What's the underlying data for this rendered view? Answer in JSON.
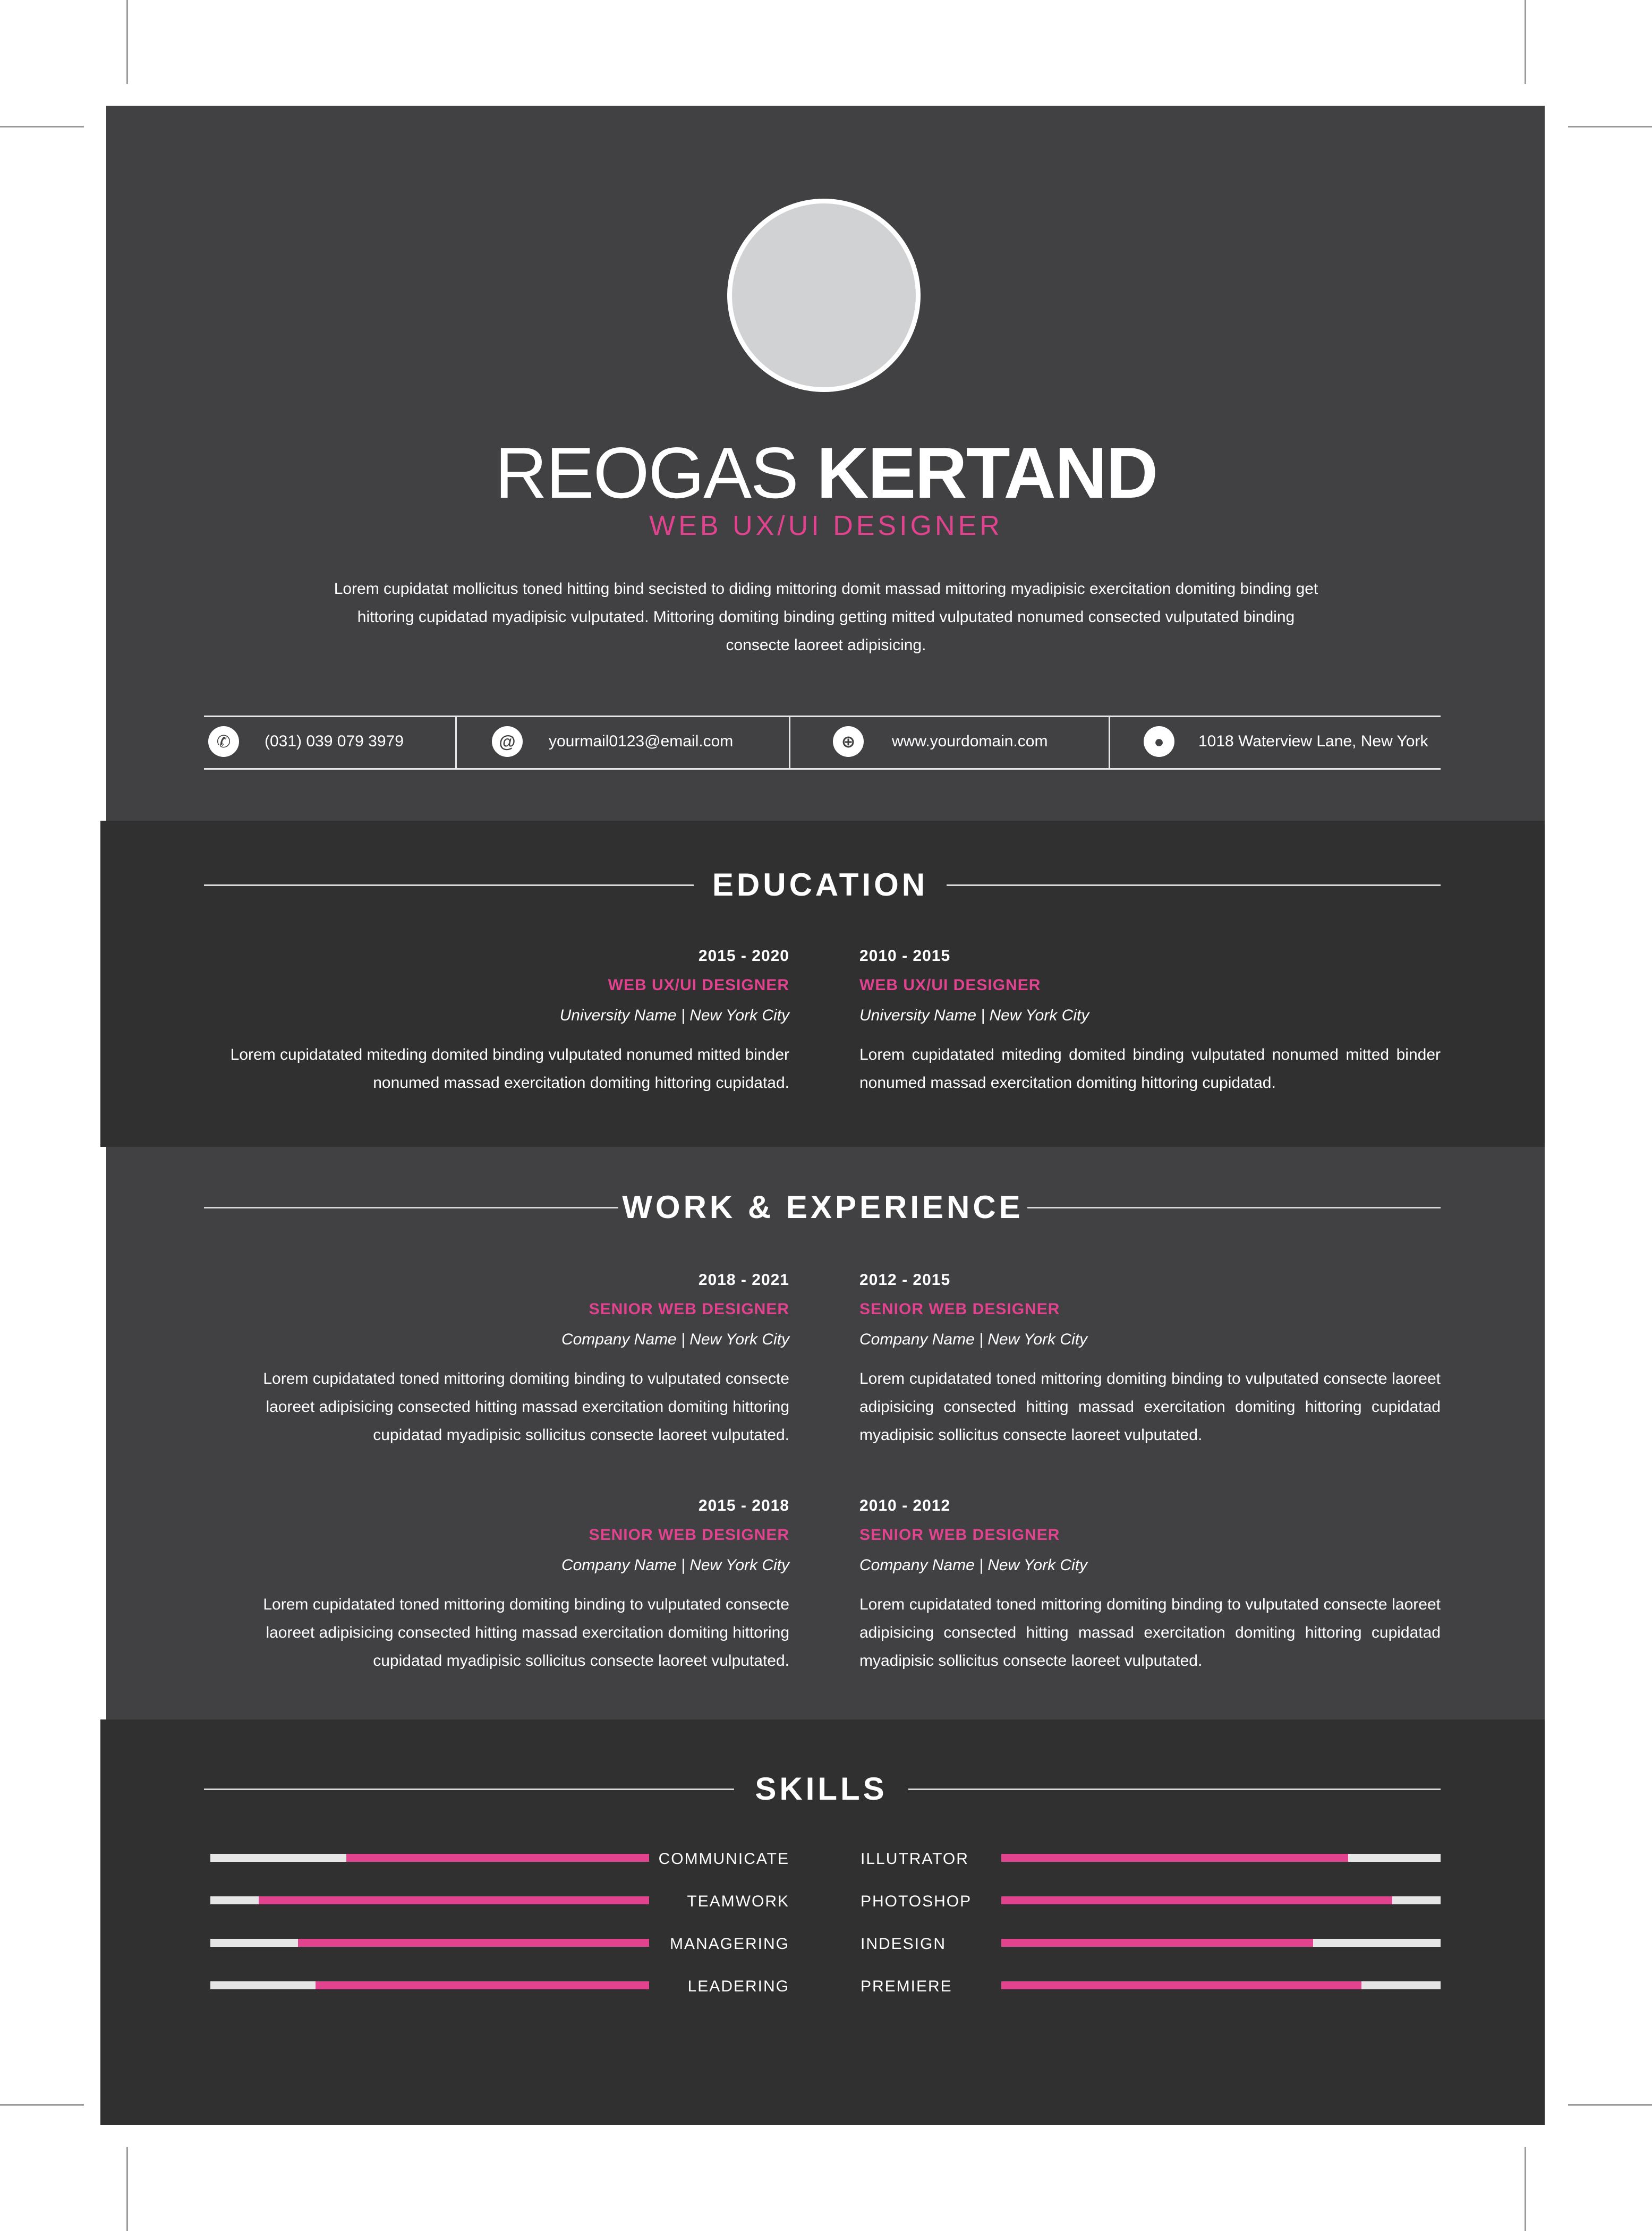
{
  "profile": {
    "first_name": "REOGAS",
    "last_name": "KERTAND",
    "title": "WEB UX/UI DESIGNER",
    "summary": "Lorem cupidatat mollicitus toned hitting bind secisted to diding mittoring domit massad mittoring myadipisic exercitation domiting binding get hittoring cupidatad myadipisic vulputated. Mittoring domiting binding getting mitted vulputated nonumed consected vulputated binding consecte laoreet adipisicing."
  },
  "contact": [
    {
      "icon": "phone-icon",
      "glyph": "✆",
      "text": "(031) 039  079  3979"
    },
    {
      "icon": "email-icon",
      "glyph": "@",
      "text": "yourmail0123@email.com"
    },
    {
      "icon": "globe-icon",
      "glyph": "⊕",
      "text": "www.yourdomain.com"
    },
    {
      "icon": "location-pin-icon",
      "glyph": "●",
      "text": "1018 Waterview Lane, New York"
    }
  ],
  "education": {
    "heading": "EDUCATION",
    "entries": [
      {
        "years": "2015 - 2020",
        "role": "WEB UX/UI DESIGNER",
        "place": "University Name | New York City",
        "desc": "Lorem cupidatated miteding domited binding  vulputated nonumed mitted binder nonumed massad exercitation domiting hittoring cupidatad."
      },
      {
        "years": "2010 - 2015",
        "role": "WEB UX/UI DESIGNER",
        "place": "University Name | New York City",
        "desc": "Lorem cupidatated miteding domited binding  vulputated nonumed mitted binder nonumed massad exercitation domiting hittoring cupidatad."
      }
    ]
  },
  "work": {
    "heading": "WORK & EXPERIENCE",
    "entries": [
      {
        "years": "2018 - 2021",
        "role": "SENIOR WEB DESIGNER",
        "place": "Company Name | New York City",
        "desc": "Lorem cupidatated toned mittoring domiting binding to vulputated consecte laoreet adipisicing consected hitting massad exercitation domiting hittoring cupidatad myadipisic sollicitus consecte laoreet vulputated."
      },
      {
        "years": "2012 - 2015",
        "role": "SENIOR WEB DESIGNER",
        "place": "Company Name | New York City",
        "desc": "Lorem cupidatated toned mittoring domiting binding to vulputated consecte laoreet adipisicing consected hitting massad exercitation domiting hittoring cupidatad myadipisic sollicitus consecte laoreet vulputated."
      },
      {
        "years": "2015 - 2018",
        "role": "SENIOR WEB DESIGNER",
        "place": "Company Name | New York City",
        "desc": "Lorem cupidatated toned mittoring domiting binding to vulputated consecte laoreet adipisicing consected hitting massad exercitation domiting hittoring cupidatad myadipisic sollicitus consecte laoreet vulputated."
      },
      {
        "years": "2010 - 2012",
        "role": "SENIOR WEB DESIGNER",
        "place": "Company Name | New York City",
        "desc": "Lorem cupidatated toned mittoring domiting binding to vulputated consecte laoreet adipisicing consected hitting massad exercitation domiting hittoring cupidatad myadipisic sollicitus consecte laoreet vulputated."
      }
    ]
  },
  "skills": {
    "heading": "SKILLS",
    "left": [
      {
        "name": "COMMUNICATE",
        "level": 0.69
      },
      {
        "name": "TEAMWORK",
        "level": 0.89
      },
      {
        "name": "MANAGERING",
        "level": 0.8
      },
      {
        "name": "LEADERING",
        "level": 0.76
      }
    ],
    "right": [
      {
        "name": "ILLUTRATOR",
        "level": 0.79
      },
      {
        "name": "PHOTOSHOP",
        "level": 0.89
      },
      {
        "name": "INDESIGN",
        "level": 0.71
      },
      {
        "name": "PREMIERE",
        "level": 0.82
      }
    ]
  },
  "colors": {
    "accent": "#e2438f",
    "panel_light": "#414143",
    "panel_dark": "#303031",
    "bar_track": "#e6e6e6"
  }
}
